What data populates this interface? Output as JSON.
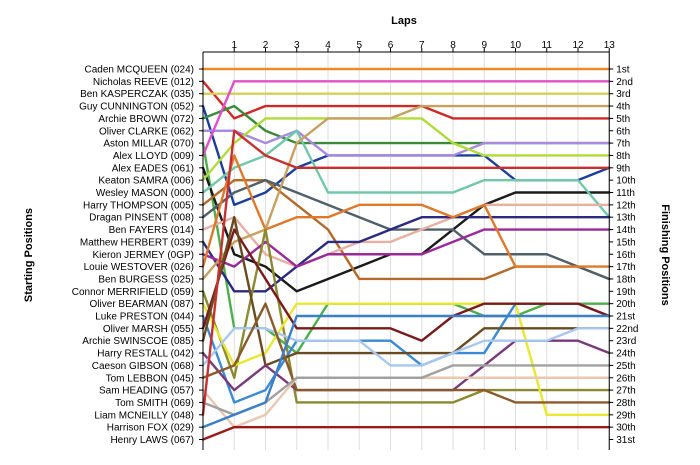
{
  "chart_data": {
    "type": "line",
    "xlabel": "Laps",
    "ylabel_left": "Starting Positions",
    "ylabel_right": "Finishing Positions",
    "laps": [
      "1",
      "2",
      "3",
      "4",
      "5",
      "6",
      "7",
      "8",
      "9",
      "10",
      "11",
      "12",
      "13"
    ],
    "finishing_labels": [
      "1st",
      "2nd",
      "3rd",
      "4th",
      "5th",
      "6th",
      "7th",
      "8th",
      "9th",
      "10th",
      "11th",
      "12th",
      "13th",
      "14th",
      "15th",
      "16th",
      "17th",
      "18th",
      "19th",
      "20th",
      "21st",
      "22nd",
      "23rd",
      "24th",
      "25th",
      "26th",
      "27th",
      "28th",
      "29th",
      "30th",
      "31st"
    ],
    "series": [
      {
        "name": "Caden MCQUEEN (024)",
        "color": "#f08a28",
        "positions": [
          1,
          1,
          1,
          1,
          1,
          1,
          1,
          1,
          1,
          1,
          1,
          1,
          1,
          1
        ]
      },
      {
        "name": "Nicholas REEVE (012)",
        "color": "#cc2a24",
        "positions": [
          2,
          5,
          4,
          4,
          4,
          4,
          4,
          4,
          5,
          5,
          5,
          5,
          5,
          5
        ]
      },
      {
        "name": "Ben KASPERCZAK (035)",
        "color": "#d4d054",
        "positions": [
          3,
          3,
          3,
          3,
          3,
          3,
          3,
          3,
          3,
          3,
          3,
          3,
          3,
          3
        ]
      },
      {
        "name": "Guy CUNNINGTON (052)",
        "color": "#1a3f9c",
        "positions": [
          4,
          12,
          11,
          9,
          8,
          8,
          8,
          8,
          8,
          8,
          10,
          10,
          10,
          9
        ]
      },
      {
        "name": "Archie BROWN (072)",
        "color": "#3a8a3a",
        "positions": [
          5,
          4,
          6,
          7,
          7,
          7,
          7,
          7,
          7,
          7,
          7,
          7,
          7,
          7
        ]
      },
      {
        "name": "Oliver CLARKE (062)",
        "color": "#a88be0",
        "positions": [
          6,
          6,
          7,
          6,
          8,
          8,
          8,
          8,
          8,
          7,
          7,
          7,
          7,
          7
        ]
      },
      {
        "name": "Aston MILLAR (070)",
        "color": "#4bb04b",
        "positions": [
          7,
          22,
          22,
          24,
          20,
          20,
          20,
          20,
          20,
          21,
          21,
          20,
          20,
          20
        ]
      },
      {
        "name": "Alex LLOYD (009)",
        "color": "#e050c8",
        "positions": [
          8,
          2,
          2,
          2,
          2,
          2,
          2,
          2,
          2,
          2,
          2,
          2,
          2,
          2
        ]
      },
      {
        "name": "Alex EADES (061)",
        "color": "#1a1a1a",
        "positions": [
          9,
          16,
          17,
          19,
          18,
          17,
          16,
          16,
          14,
          12,
          11,
          11,
          11,
          11
        ]
      },
      {
        "name": "Keaton SAMRA (006)",
        "color": "#b0dc38",
        "positions": [
          10,
          7,
          5,
          5,
          5,
          5,
          5,
          5,
          7,
          8,
          8,
          8,
          8,
          8
        ]
      },
      {
        "name": "Wesley MASON (000)",
        "color": "#70c8a8",
        "positions": [
          11,
          9,
          8,
          6,
          11,
          11,
          11,
          11,
          11,
          10,
          10,
          10,
          10,
          13
        ]
      },
      {
        "name": "Harry THOMPSON (005)",
        "color": "#b46a2a",
        "positions": [
          12,
          10,
          10,
          12,
          14,
          18,
          18,
          18,
          18,
          18,
          17,
          17,
          17,
          18
        ]
      },
      {
        "name": "Dragan PINSENT (008)",
        "color": "#50606a",
        "positions": [
          13,
          11,
          10,
          11,
          12,
          13,
          14,
          14,
          14,
          16,
          16,
          16,
          17,
          18
        ]
      },
      {
        "name": "Ben FAYERS (014)",
        "color": "#e8b0a0",
        "positions": [
          14,
          13,
          16,
          17,
          16,
          15,
          15,
          14,
          13,
          12,
          12,
          12,
          12,
          12
        ]
      },
      {
        "name": "Matthew HERBERT (039)",
        "color": "#2a2a80",
        "positions": [
          15,
          19,
          19,
          17,
          15,
          15,
          14,
          13,
          13,
          13,
          13,
          13,
          13,
          13
        ]
      },
      {
        "name": "Kieron JERMEY (0GP)",
        "color": "#9a2a9a",
        "positions": [
          16,
          17,
          15,
          17,
          16,
          16,
          16,
          16,
          15,
          14,
          14,
          14,
          14,
          14
        ]
      },
      {
        "name": "Louie WESTOVER (026)",
        "color": "#e0782a",
        "positions": [
          17,
          8,
          14,
          13,
          13,
          12,
          12,
          12,
          13,
          12,
          17,
          17,
          17,
          17
        ]
      },
      {
        "name": "Ben BURGESS (025)",
        "color": "#c8a060",
        "positions": [
          18,
          15,
          14,
          7,
          5,
          5,
          5,
          4,
          4,
          4,
          4,
          4,
          4,
          4
        ]
      },
      {
        "name": "Connor MERRIFIELD (059)",
        "color": "#8a8a30",
        "positions": [
          19,
          26,
          14,
          28,
          28,
          28,
          28,
          28,
          28,
          27,
          27,
          27,
          27,
          27
        ]
      },
      {
        "name": "Oliver BEARMAN (087)",
        "color": "#e8e830",
        "positions": [
          20,
          25,
          24,
          20,
          20,
          20,
          20,
          20,
          20,
          20,
          20,
          29,
          29,
          29
        ]
      },
      {
        "name": "Luke PRESTON (044)",
        "color": "#3a8ad4",
        "positions": [
          21,
          28,
          27,
          23,
          23,
          23,
          23,
          25,
          24,
          24,
          20,
          20,
          20,
          21
        ]
      },
      {
        "name": "Oliver MARSH (055)",
        "color": "#7a1a1a",
        "positions": [
          22,
          14,
          18,
          22,
          22,
          22,
          22,
          23,
          21,
          20,
          20,
          20,
          20,
          21
        ]
      },
      {
        "name": "Archie SWINSCOE (085)",
        "color": "#6a4a20",
        "positions": [
          23,
          13,
          25,
          24,
          24,
          24,
          24,
          24,
          24,
          22,
          22,
          22,
          22,
          22
        ]
      },
      {
        "name": "Harry RESTALL (042)",
        "color": "#7a3a7a",
        "positions": [
          24,
          27,
          25,
          27,
          27,
          27,
          27,
          27,
          27,
          25,
          23,
          23,
          23,
          24
        ]
      },
      {
        "name": "Caeson GIBSON (068)",
        "color": "#a8c8f0",
        "positions": [
          25,
          22,
          22,
          23,
          23,
          23,
          25,
          25,
          24,
          23,
          23,
          23,
          22,
          22
        ]
      },
      {
        "name": "Tom LEBBON (045)",
        "color": "#8a5a2a",
        "positions": [
          26,
          25,
          20,
          27,
          27,
          27,
          27,
          27,
          27,
          27,
          28,
          28,
          28,
          28
        ]
      },
      {
        "name": "Sam HEADING (057)",
        "color": "#e8c8b0",
        "positions": [
          27,
          30,
          29,
          26,
          26,
          26,
          26,
          26,
          26,
          26,
          26,
          26,
          26,
          26
        ]
      },
      {
        "name": "Tom SMITH (069)",
        "color": "#a0a0a0",
        "positions": [
          28,
          29,
          28,
          26,
          26,
          26,
          26,
          26,
          25,
          25,
          25,
          25,
          25,
          25
        ]
      },
      {
        "name": "Liam MCNEILLY (048)",
        "color": "#c83030",
        "positions": [
          29,
          6,
          8,
          9,
          9,
          9,
          9,
          9,
          9,
          9,
          9,
          9,
          9,
          9
        ]
      },
      {
        "name": "Harrison FOX (029)",
        "color": "#3c7ec8",
        "positions": [
          30,
          29,
          28,
          21,
          21,
          21,
          21,
          21,
          21,
          21,
          21,
          21,
          21,
          21
        ]
      },
      {
        "name": "Henry LAWS (067)",
        "color": "#9a1a1a",
        "positions": [
          31,
          30,
          30,
          30,
          30,
          30,
          30,
          30,
          30,
          30,
          30,
          30,
          30,
          30
        ]
      }
    ]
  }
}
